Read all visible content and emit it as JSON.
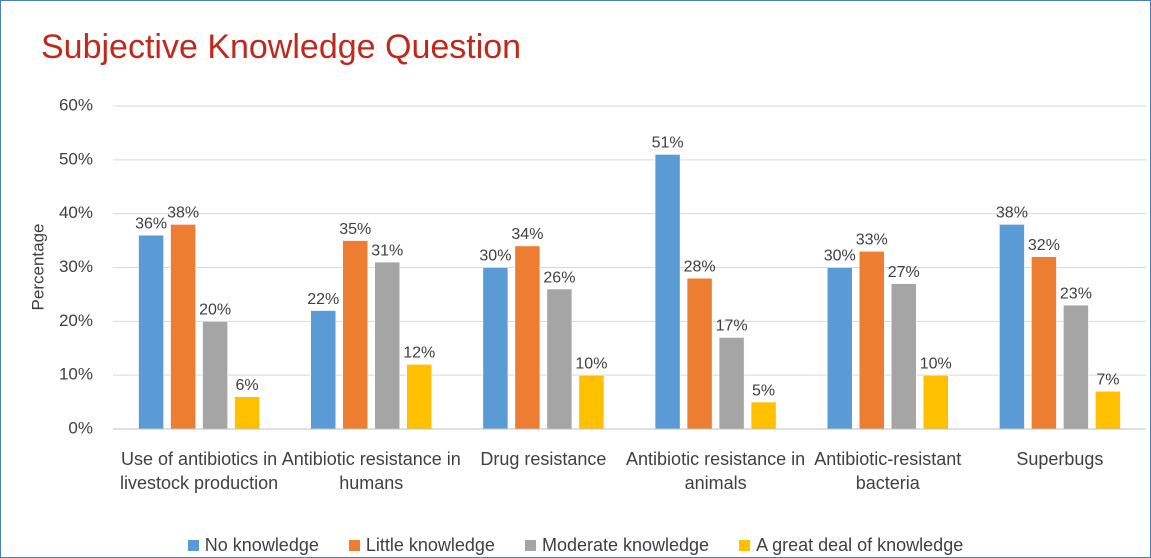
{
  "chart_data": {
    "type": "bar",
    "title": "Subjective Knowledge Question",
    "y_label": "Percentage",
    "categories": [
      "Use of antibiotics in livestock production",
      "Antibiotic resistance in humans",
      "Drug resistance",
      "Antibiotic resistance in animals",
      "Antibiotic-resistant bacteria",
      "Superbugs"
    ],
    "series": [
      {
        "name": "No knowledge",
        "color": "#5b9bd5",
        "values": [
          36,
          22,
          30,
          51,
          30,
          38
        ],
        "value_labels": [
          "36%",
          "22%",
          "30%",
          "51%",
          "30%",
          "38%"
        ]
      },
      {
        "name": "Little knowledge",
        "color": "#ed7d31",
        "values": [
          38,
          35,
          34,
          28,
          33,
          32
        ],
        "value_labels": [
          "38%",
          "35%",
          "34%",
          "28%",
          "33%",
          "32%"
        ]
      },
      {
        "name": "Moderate knowledge",
        "color": "#a5a5a5",
        "values": [
          20,
          31,
          26,
          17,
          27,
          23
        ],
        "value_labels": [
          "20%",
          "31%",
          "26%",
          "17%",
          "27%",
          "23%"
        ]
      },
      {
        "name": "A great deal of knowledge",
        "color": "#ffc000",
        "values": [
          6,
          12,
          10,
          5,
          10,
          7
        ],
        "value_labels": [
          "6%",
          "12%",
          "10%",
          "5%",
          "10%",
          "7%"
        ]
      }
    ],
    "ylim": [
      0,
      60
    ],
    "yticks": [
      {
        "value": 0,
        "label": "0%"
      },
      {
        "value": 10,
        "label": "10%"
      },
      {
        "value": 20,
        "label": "20%"
      },
      {
        "value": 30,
        "label": "30%"
      },
      {
        "value": 40,
        "label": "40%"
      },
      {
        "value": 50,
        "label": "50%"
      },
      {
        "value": 60,
        "label": "60%"
      }
    ],
    "grid": true
  }
}
